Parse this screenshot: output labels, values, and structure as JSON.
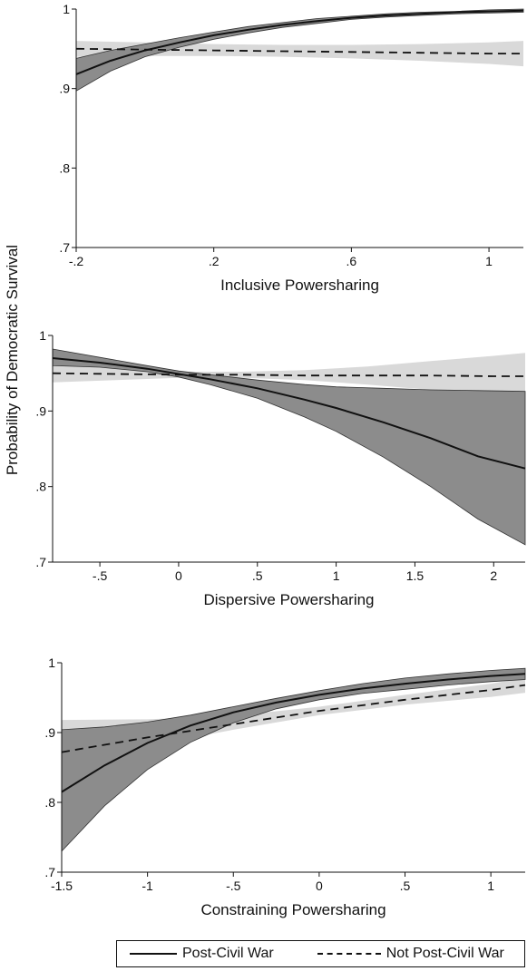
{
  "y_axis_label": "Probability of Democratic Survival",
  "legend": {
    "solid_label": "Post-Civil War",
    "dashed_label": "Not Post-Civil War"
  },
  "colors": {
    "band_post_civil_war": "#8c8c8c",
    "band_not_post_civil_war": "#d9d9d9",
    "line": "#111111"
  },
  "chart_data": [
    {
      "type": "line",
      "xlabel": "Inclusive Powersharing",
      "ylabel": "Probability of Democratic Survival",
      "xlim": [
        -0.2,
        1.1
      ],
      "ylim": [
        0.7,
        1.0
      ],
      "xticks": [
        -0.2,
        0.2,
        0.6,
        1
      ],
      "xtick_labels": [
        "-.2",
        ".2",
        ".6",
        "1"
      ],
      "yticks": [
        0.7,
        0.8,
        0.9,
        1.0
      ],
      "ytick_labels": [
        ".7",
        ".8",
        ".9",
        "1"
      ],
      "series": [
        {
          "name": "Post-Civil War",
          "style": "solid",
          "x": [
            -0.2,
            -0.1,
            0.0,
            0.1,
            0.2,
            0.3,
            0.4,
            0.5,
            0.6,
            0.7,
            0.8,
            0.9,
            1.0,
            1.1
          ],
          "y": [
            0.918,
            0.935,
            0.948,
            0.958,
            0.967,
            0.974,
            0.98,
            0.985,
            0.989,
            0.992,
            0.994,
            0.996,
            0.997,
            0.998
          ],
          "ci_low": [
            0.897,
            0.922,
            0.94,
            0.952,
            0.962,
            0.97,
            0.977,
            0.982,
            0.987,
            0.99,
            0.992,
            0.994,
            0.995,
            0.996
          ],
          "ci_high": [
            0.938,
            0.948,
            0.956,
            0.964,
            0.971,
            0.978,
            0.983,
            0.988,
            0.991,
            0.994,
            0.996,
            0.997,
            0.999,
            1.0
          ]
        },
        {
          "name": "Not Post-Civil War",
          "style": "dashed",
          "x": [
            -0.2,
            0.0,
            0.2,
            0.4,
            0.6,
            0.8,
            1.0,
            1.1
          ],
          "y": [
            0.95,
            0.949,
            0.948,
            0.947,
            0.946,
            0.945,
            0.944,
            0.944
          ],
          "ci_low": [
            0.94,
            0.941,
            0.941,
            0.94,
            0.938,
            0.935,
            0.931,
            0.928
          ],
          "ci_high": [
            0.96,
            0.958,
            0.956,
            0.955,
            0.955,
            0.956,
            0.958,
            0.96
          ]
        }
      ]
    },
    {
      "type": "line",
      "xlabel": "Dispersive Powersharing",
      "ylabel": "Probability of Democratic Survival",
      "xlim": [
        -0.8,
        2.2
      ],
      "ylim": [
        0.7,
        1.0
      ],
      "xticks": [
        -0.5,
        0,
        0.5,
        1,
        1.5,
        2
      ],
      "xtick_labels": [
        "-.5",
        "0",
        ".5",
        "1",
        "1.5",
        "2"
      ],
      "yticks": [
        0.7,
        0.8,
        0.9,
        1.0
      ],
      "ytick_labels": [
        ".7",
        ".8",
        ".9",
        "1"
      ],
      "series": [
        {
          "name": "Post-Civil War",
          "style": "solid",
          "x": [
            -0.8,
            -0.5,
            -0.2,
            0.0,
            0.2,
            0.5,
            0.8,
            1.0,
            1.3,
            1.6,
            1.9,
            2.2
          ],
          "y": [
            0.97,
            0.964,
            0.956,
            0.949,
            0.942,
            0.93,
            0.915,
            0.904,
            0.885,
            0.864,
            0.84,
            0.824
          ],
          "ci_low": [
            0.96,
            0.958,
            0.952,
            0.945,
            0.935,
            0.917,
            0.892,
            0.873,
            0.839,
            0.8,
            0.757,
            0.723
          ],
          "ci_high": [
            0.982,
            0.971,
            0.96,
            0.953,
            0.948,
            0.941,
            0.935,
            0.932,
            0.93,
            0.928,
            0.927,
            0.926
          ]
        },
        {
          "name": "Not Post-Civil War",
          "style": "dashed",
          "x": [
            -0.8,
            -0.4,
            0.0,
            0.4,
            0.8,
            1.2,
            1.6,
            2.0,
            2.2
          ],
          "y": [
            0.95,
            0.949,
            0.948,
            0.948,
            0.947,
            0.947,
            0.947,
            0.946,
            0.946
          ],
          "ci_low": [
            0.938,
            0.941,
            0.944,
            0.944,
            0.941,
            0.935,
            0.928,
            0.921,
            0.918
          ],
          "ci_high": [
            0.962,
            0.957,
            0.952,
            0.952,
            0.954,
            0.959,
            0.966,
            0.973,
            0.977
          ]
        }
      ]
    },
    {
      "type": "line",
      "xlabel": "Constraining Powersharing",
      "ylabel": "Probability of Democratic Survival",
      "xlim": [
        -1.5,
        1.2
      ],
      "ylim": [
        0.7,
        1.0
      ],
      "xticks": [
        -1.5,
        -1,
        -0.5,
        0,
        0.5,
        1
      ],
      "xtick_labels": [
        "-1.5",
        "-1",
        "-.5",
        "0",
        ".5",
        "1"
      ],
      "yticks": [
        0.7,
        0.8,
        0.9,
        1.0
      ],
      "ytick_labels": [
        ".7",
        ".8",
        ".9",
        "1"
      ],
      "series": [
        {
          "name": "Post-Civil War",
          "style": "solid",
          "x": [
            -1.5,
            -1.25,
            -1.0,
            -0.75,
            -0.5,
            -0.25,
            0.0,
            0.25,
            0.5,
            0.75,
            1.0,
            1.2
          ],
          "y": [
            0.815,
            0.853,
            0.885,
            0.91,
            0.929,
            0.943,
            0.954,
            0.963,
            0.97,
            0.976,
            0.981,
            0.984
          ],
          "ci_low": [
            0.73,
            0.795,
            0.847,
            0.886,
            0.914,
            0.934,
            0.947,
            0.956,
            0.962,
            0.968,
            0.973,
            0.976
          ],
          "ci_high": [
            0.904,
            0.908,
            0.915,
            0.925,
            0.937,
            0.949,
            0.96,
            0.97,
            0.978,
            0.984,
            0.989,
            0.992
          ]
        },
        {
          "name": "Not Post-Civil War",
          "style": "dashed",
          "x": [
            -1.5,
            -1.0,
            -0.5,
            0.0,
            0.5,
            1.0,
            1.2
          ],
          "y": [
            0.872,
            0.893,
            0.912,
            0.931,
            0.947,
            0.961,
            0.968
          ],
          "ci_low": [
            0.855,
            0.881,
            0.904,
            0.925,
            0.94,
            0.951,
            0.957
          ],
          "ci_high": [
            0.918,
            0.919,
            0.924,
            0.937,
            0.954,
            0.97,
            0.978
          ]
        }
      ]
    }
  ]
}
